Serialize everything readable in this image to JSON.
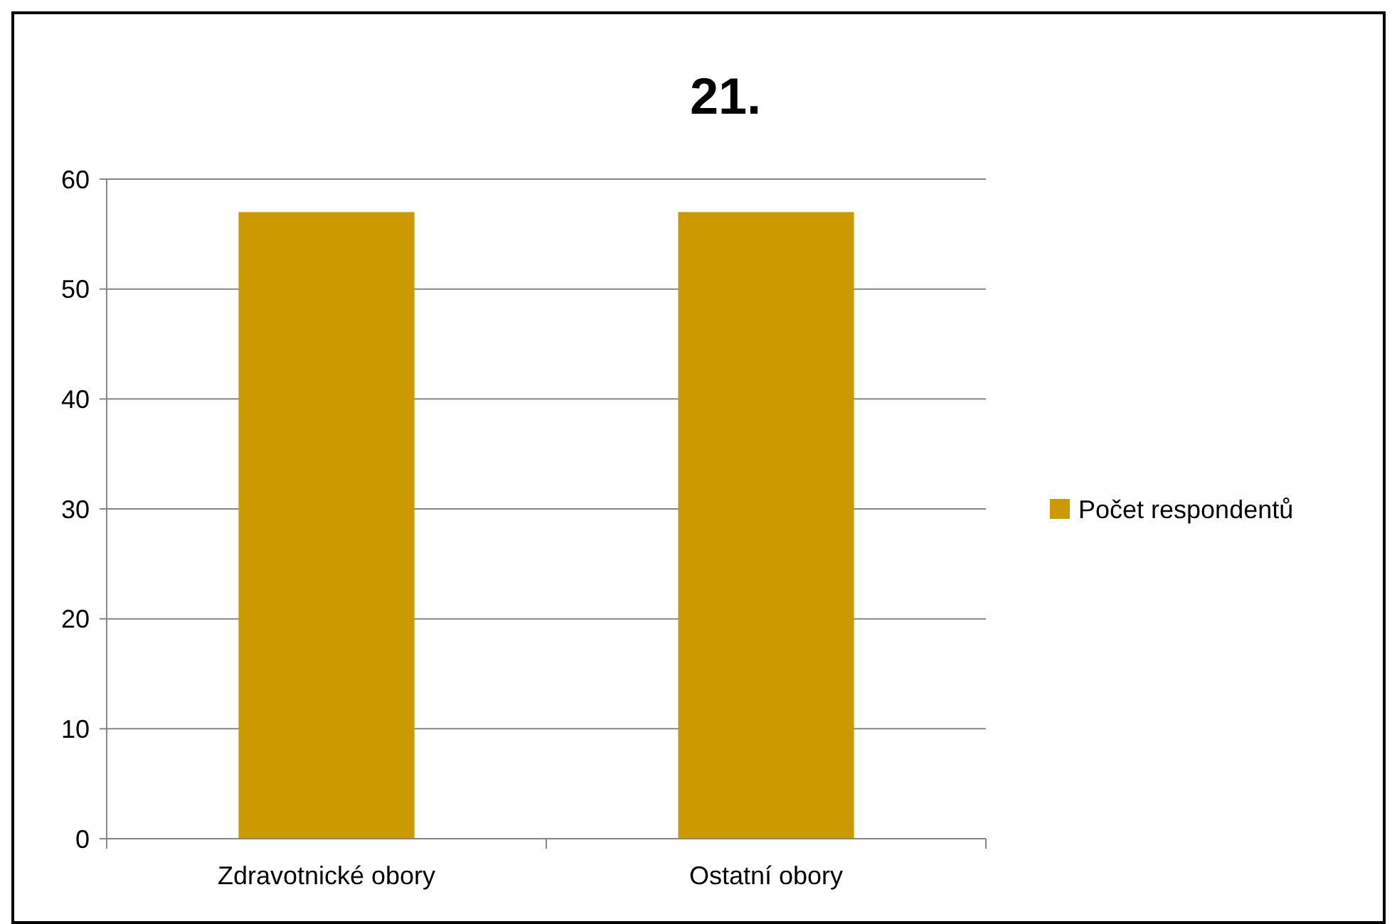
{
  "chart_data": {
    "type": "bar",
    "title": "21.",
    "categories": [
      "Zdravotnické obory",
      "Ostatní obory"
    ],
    "series": [
      {
        "name": "Počet respondentů",
        "color": "#cc9900",
        "values": [
          57,
          57
        ]
      }
    ],
    "ylim": [
      0,
      60
    ],
    "yticks": [
      0,
      10,
      20,
      30,
      40,
      50,
      60
    ],
    "grid": "y",
    "legend": "right"
  }
}
